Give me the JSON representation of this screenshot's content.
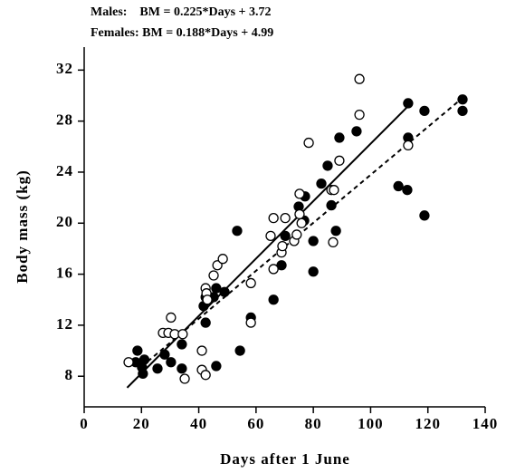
{
  "chart_data": {
    "type": "scatter",
    "annotations": [
      "Males:    BM = 0.225*Days + 3.72",
      "Females: BM = 0.188*Days + 4.99"
    ],
    "x_label": "Days after 1 June",
    "y_label": "Body mass (kg)",
    "xlim": [
      0,
      140
    ],
    "ylim": [
      5.6,
      33.8
    ],
    "xticks": [
      0,
      20,
      40,
      60,
      80,
      100,
      120,
      140
    ],
    "yticks": [
      8,
      12,
      16,
      20,
      24,
      28,
      32
    ],
    "series": [
      {
        "marker": "filled",
        "color": "#000000",
        "x": [
          18.6,
          18.0,
          20.2,
          20.5,
          21.0,
          25.6,
          28.1,
          30.3,
          34.1,
          34.1,
          42.4,
          41.7,
          42.4,
          45.2,
          46.1,
          46.1,
          49.0,
          53.4,
          54.4,
          58.2,
          66.1,
          68.9,
          70.2,
          74.9,
          76.8,
          77.1,
          80.0,
          80.0,
          82.8,
          85.0,
          86.3,
          87.9,
          89.1,
          95.1,
          109.7,
          112.8,
          113.1,
          113.1,
          118.8,
          118.8,
          132.1,
          132.1
        ],
        "values": [
          10.0,
          9.1,
          8.7,
          8.2,
          9.3,
          8.6,
          9.7,
          9.1,
          10.5,
          8.6,
          12.2,
          13.5,
          14.2,
          14.2,
          14.9,
          8.8,
          14.6,
          19.4,
          10.0,
          12.6,
          14.0,
          16.7,
          19.0,
          21.3,
          20.2,
          22.1,
          18.6,
          16.2,
          23.1,
          24.5,
          21.4,
          19.4,
          26.7,
          27.2,
          22.9,
          22.6,
          29.4,
          26.7,
          28.8,
          20.6,
          29.7,
          28.8
        ]
      },
      {
        "marker": "open",
        "color": "#000000",
        "x": [
          15.5,
          27.5,
          29.4,
          30.3,
          31.6,
          34.4,
          35.1,
          41.1,
          41.1,
          42.4,
          42.4,
          42.7,
          43.0,
          45.2,
          46.5,
          48.4,
          58.2,
          58.2,
          65.1,
          66.1,
          66.1,
          68.9,
          69.2,
          70.2,
          73.3,
          74.2,
          75.2,
          75.2,
          75.9,
          78.4,
          86.3,
          87.2,
          86.9,
          89.1,
          96.1,
          96.1,
          113.1
        ],
        "values": [
          9.1,
          11.4,
          11.4,
          12.6,
          11.3,
          11.3,
          7.8,
          10.0,
          8.5,
          8.1,
          14.9,
          14.5,
          14.0,
          15.9,
          16.7,
          17.2,
          15.3,
          12.2,
          19.0,
          20.4,
          16.4,
          17.7,
          18.2,
          20.4,
          18.6,
          19.1,
          22.3,
          20.7,
          20.0,
          26.3,
          22.6,
          22.6,
          18.5,
          24.9,
          31.3,
          28.5,
          26.1
        ]
      }
    ],
    "fit_lines": [
      {
        "style": "solid",
        "color": "#000000",
        "x": [
          15,
          113
        ],
        "values": [
          7.1,
          29.15
        ]
      },
      {
        "style": "dashed",
        "color": "#000000",
        "x": [
          20,
          132
        ],
        "values": [
          8.75,
          29.8
        ]
      }
    ]
  }
}
